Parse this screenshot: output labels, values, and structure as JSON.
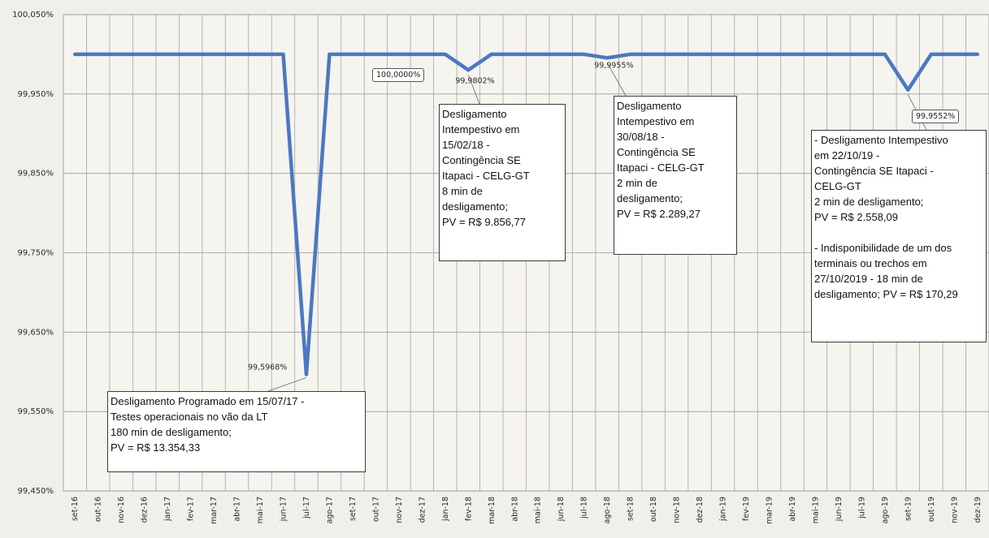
{
  "chart_data": {
    "type": "line",
    "title": "",
    "xlabel": "",
    "ylabel": "",
    "ylim": [
      99.45,
      100.05
    ],
    "y_ticks": [
      "99,450%",
      "99,550%",
      "99,650%",
      "99,750%",
      "99,850%",
      "99,950%",
      "100,050%"
    ],
    "categories": [
      "set-16",
      "out-16",
      "nov-16",
      "dez-16",
      "jan-17",
      "fev-17",
      "mar-17",
      "abr-17",
      "mai-17",
      "jun-17",
      "jul-17",
      "ago-17",
      "set-17",
      "out-17",
      "nov-17",
      "dez-17",
      "jan-18",
      "fev-18",
      "mar-18",
      "abr-18",
      "mai-18",
      "jun-18",
      "jul-18",
      "ago-18",
      "set-18",
      "out-18",
      "nov-18",
      "dez-18",
      "jan-19",
      "fev-19",
      "mar-19",
      "abr-19",
      "mai-19",
      "jun-19",
      "jul-19",
      "ago-19",
      "set-19",
      "out-19",
      "nov-19",
      "dez-19"
    ],
    "series": [
      {
        "color": "#4a78c2",
        "values": [
          100.0,
          100.0,
          100.0,
          100.0,
          100.0,
          100.0,
          100.0,
          100.0,
          100.0,
          100.0,
          99.5968,
          100.0,
          100.0,
          100.0,
          100.0,
          100.0,
          100.0,
          99.9802,
          100.0,
          100.0,
          100.0,
          100.0,
          100.0,
          99.9955,
          100.0,
          100.0,
          100.0,
          100.0,
          100.0,
          100.0,
          100.0,
          100.0,
          100.0,
          100.0,
          100.0,
          100.0,
          99.9552,
          100.0,
          100.0,
          100.0
        ]
      }
    ],
    "data_labels": [
      {
        "index": 10,
        "text": "99,5968%"
      },
      {
        "index": 12,
        "text": "100,0000%"
      },
      {
        "index": 17,
        "text": "99,9802%"
      },
      {
        "index": 23,
        "text": "99,9955%"
      },
      {
        "index": 36,
        "text": "99,9552%"
      }
    ],
    "annotations": [
      {
        "text": "Desligamento Programado em 15/07/17 -\nTestes operacionais no vão da LT\n180 min de desligamento;\nPV = R$ 13.354,33"
      },
      {
        "text": "Desligamento\nIntempestivo em\n15/02/18 -\nContingência SE\nItapaci  - CELG-GT\n8 min de\ndesligamento;\nPV = R$ 9.856,77"
      },
      {
        "text": "Desligamento\nIntempestivo em\n30/08/18 -\nContingência SE\nItapaci - CELG-GT\n2 min de\ndesligamento;\nPV = R$ 2.289,27"
      },
      {
        "text": "- Desligamento Intempestivo\nem 22/10/19 -\nContingência SE Itapaci -\nCELG-GT\n2 min de desligamento;\nPV = R$ 2.558,09\n\n- Indisponibilidade de um dos\nterminais ou trechos em\n27/10/2019 - 18 min de\ndesligamento; PV = R$ 170,29"
      }
    ],
    "grid": true,
    "legend": "none"
  }
}
